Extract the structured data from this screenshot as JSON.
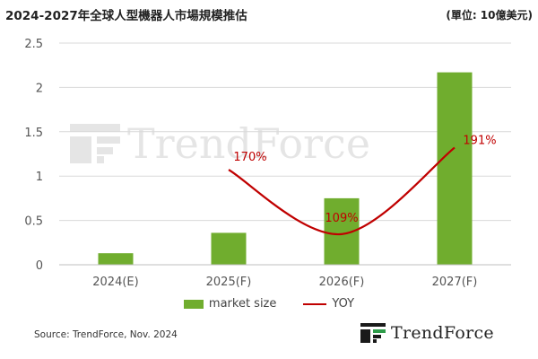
{
  "header": {
    "title": "2024-2027年全球人型機器人市場規模推估",
    "unit": "(單位: 10億美元)"
  },
  "brand": {
    "name": "TrendForce",
    "logo_icon": "trendforce-logo-icon"
  },
  "watermark": {
    "name": "TrendForce"
  },
  "legend": {
    "bar_label": "market size",
    "line_label": "YOY"
  },
  "source": "Source: TrendForce, Nov. 2024",
  "colors": {
    "bar": "#70ad2e",
    "line": "#c00000",
    "grid": "#d9d9d9",
    "axis_text": "#555555"
  },
  "chart_data": {
    "type": "bar",
    "title": "2024-2027年全球人型機器人市場規模推估",
    "xlabel": "",
    "ylabel": "",
    "categories": [
      "2024(E)",
      "2025(F)",
      "2026(F)",
      "2027(F)"
    ],
    "ylim": [
      0,
      2.5
    ],
    "yticks": [
      "0",
      "0.5",
      "1",
      "1.5",
      "2",
      "2.5"
    ],
    "grid": true,
    "legend_position": "bottom",
    "series": [
      {
        "name": "market size",
        "type": "bar",
        "values": [
          0.13,
          0.36,
          0.75,
          2.17
        ]
      },
      {
        "name": "YOY",
        "type": "line",
        "values": [
          null,
          170,
          109,
          191
        ],
        "labels": [
          "",
          "170%",
          "109%",
          "191%"
        ]
      }
    ]
  }
}
